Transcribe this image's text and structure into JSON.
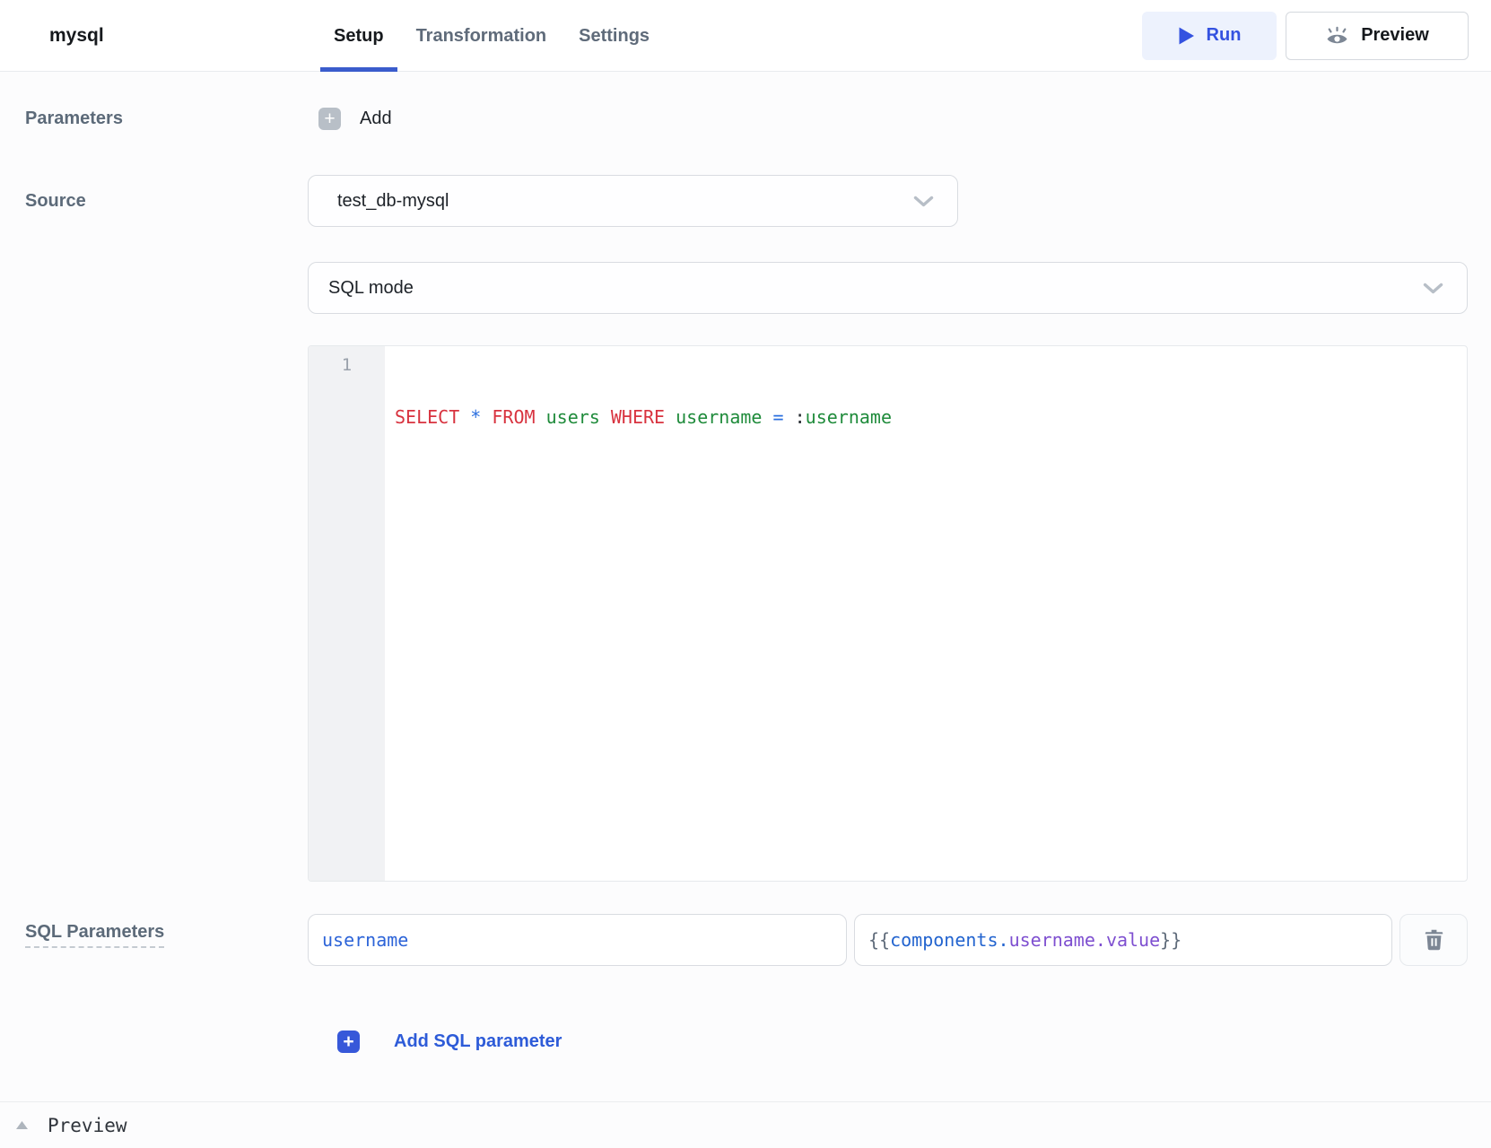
{
  "header": {
    "title": "mysql",
    "tabs": [
      {
        "label": "Setup",
        "active": true
      },
      {
        "label": "Transformation",
        "active": false
      },
      {
        "label": "Settings",
        "active": false
      }
    ],
    "run_label": "Run",
    "preview_label": "Preview"
  },
  "form": {
    "parameters_label": "Parameters",
    "add_label": "Add",
    "source_label": "Source",
    "source_value": "test_db-mysql",
    "sql_mode_value": "SQL mode",
    "editor": {
      "line_number": "1",
      "sql_text": "SELECT * FROM users WHERE username = :username",
      "tokens": [
        {
          "t": "SELECT",
          "c": "#d8333f"
        },
        {
          "t": " "
        },
        {
          "t": "*",
          "c": "#2b6fdf"
        },
        {
          "t": " "
        },
        {
          "t": "FROM",
          "c": "#d8333f"
        },
        {
          "t": " "
        },
        {
          "t": "users",
          "c": "#1f8b3b"
        },
        {
          "t": " "
        },
        {
          "t": "WHERE",
          "c": "#d8333f"
        },
        {
          "t": " "
        },
        {
          "t": "username",
          "c": "#1f8b3b"
        },
        {
          "t": " "
        },
        {
          "t": "=",
          "c": "#2b6fdf"
        },
        {
          "t": " "
        },
        {
          "t": ":",
          "c": "#24292f"
        },
        {
          "t": "username",
          "c": "#1f8b3b"
        }
      ]
    },
    "sql_parameters_label": "SQL Parameters",
    "param_rows": [
      {
        "name": "username",
        "value_text": "{{components.username.value}}",
        "value_tokens": [
          {
            "t": "{{",
            "c": "#5f6b7a"
          },
          {
            "t": "components",
            "c": "#2364cf"
          },
          {
            "t": ".",
            "c": "#2364cf"
          },
          {
            "t": "username",
            "c": "#7e4fd0"
          },
          {
            "t": ".",
            "c": "#7e4fd0"
          },
          {
            "t": "value",
            "c": "#7e4fd0"
          },
          {
            "t": "}}",
            "c": "#5f6b7a"
          }
        ]
      }
    ],
    "add_sql_parameter_label": "Add SQL parameter"
  },
  "footer": {
    "preview_label": "Preview"
  },
  "icons": {
    "plus": "+",
    "run": "play-icon",
    "preview": "eye-icon",
    "delete": "trash-icon",
    "select": "chevron-down-icon",
    "collapse": "triangle-up-icon"
  },
  "colors": {
    "accent_blue": "#3452e0",
    "tab_underline": "#3a5ccc",
    "run_button_bg": "#edf2fd",
    "link_blue": "#2d5bd8",
    "add_icon_gray": "#b8bfc7",
    "add_icon_blue": "#3758d9",
    "param_name_blue": "#2d64d8",
    "sql_keyword_red": "#d8333f",
    "sql_identifier_green": "#1f8b3b",
    "sql_operator_blue": "#2b6fdf",
    "mustache_gray": "#5f6b7a",
    "mustache_purple": "#7e4fd0",
    "mustache_blue": "#2364cf"
  }
}
